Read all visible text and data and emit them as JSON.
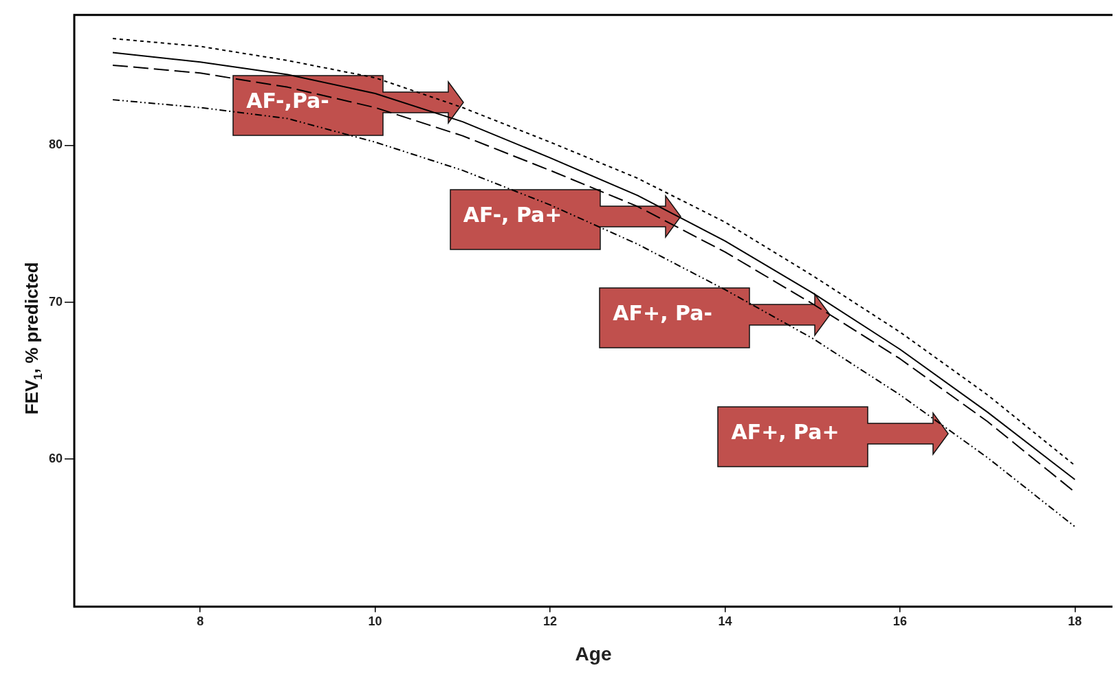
{
  "chart_data": {
    "type": "line",
    "xlabel": "Age",
    "ylabel": "FEV$_{1}$, % predicted",
    "xlim": [
      6.56,
      18.43
    ],
    "xticks": [
      8,
      10,
      12,
      14,
      16,
      18
    ],
    "ylim": [
      50.6,
      88.3
    ],
    "yticks": [
      60,
      70,
      80
    ],
    "grid": false,
    "legend": false,
    "marker": "none",
    "x": [
      7,
      8,
      9,
      10,
      11,
      12,
      13,
      14,
      15,
      16,
      17,
      18
    ],
    "series": [
      {
        "color": "#000000",
        "line_style": "dotted",
        "values": [
          86.8,
          86.3,
          85.4,
          84.3,
          82.4,
          80.2,
          77.9,
          75.1,
          71.7,
          68.1,
          64.1,
          59.6
        ]
      },
      {
        "color": "#000000",
        "line_style": "solid",
        "values": [
          85.9,
          85.3,
          84.5,
          83.3,
          81.5,
          79.2,
          76.8,
          73.9,
          70.6,
          67.0,
          63.0,
          58.7
        ]
      },
      {
        "color": "#000000",
        "line_style": "dashed",
        "values": [
          85.1,
          84.6,
          83.7,
          82.4,
          80.6,
          78.4,
          76.1,
          73.2,
          69.9,
          66.4,
          62.4,
          57.9
        ]
      },
      {
        "color": "#000000",
        "line_style": "dashdot",
        "values": [
          82.9,
          82.4,
          81.7,
          80.2,
          78.4,
          76.2,
          73.7,
          70.8,
          67.7,
          64.1,
          60.1,
          55.7
        ]
      }
    ],
    "annotations": [
      "AF-,Pa-",
      "AF-, Pa+",
      "AF+, Pa-",
      "AF+, Pa+"
    ]
  }
}
